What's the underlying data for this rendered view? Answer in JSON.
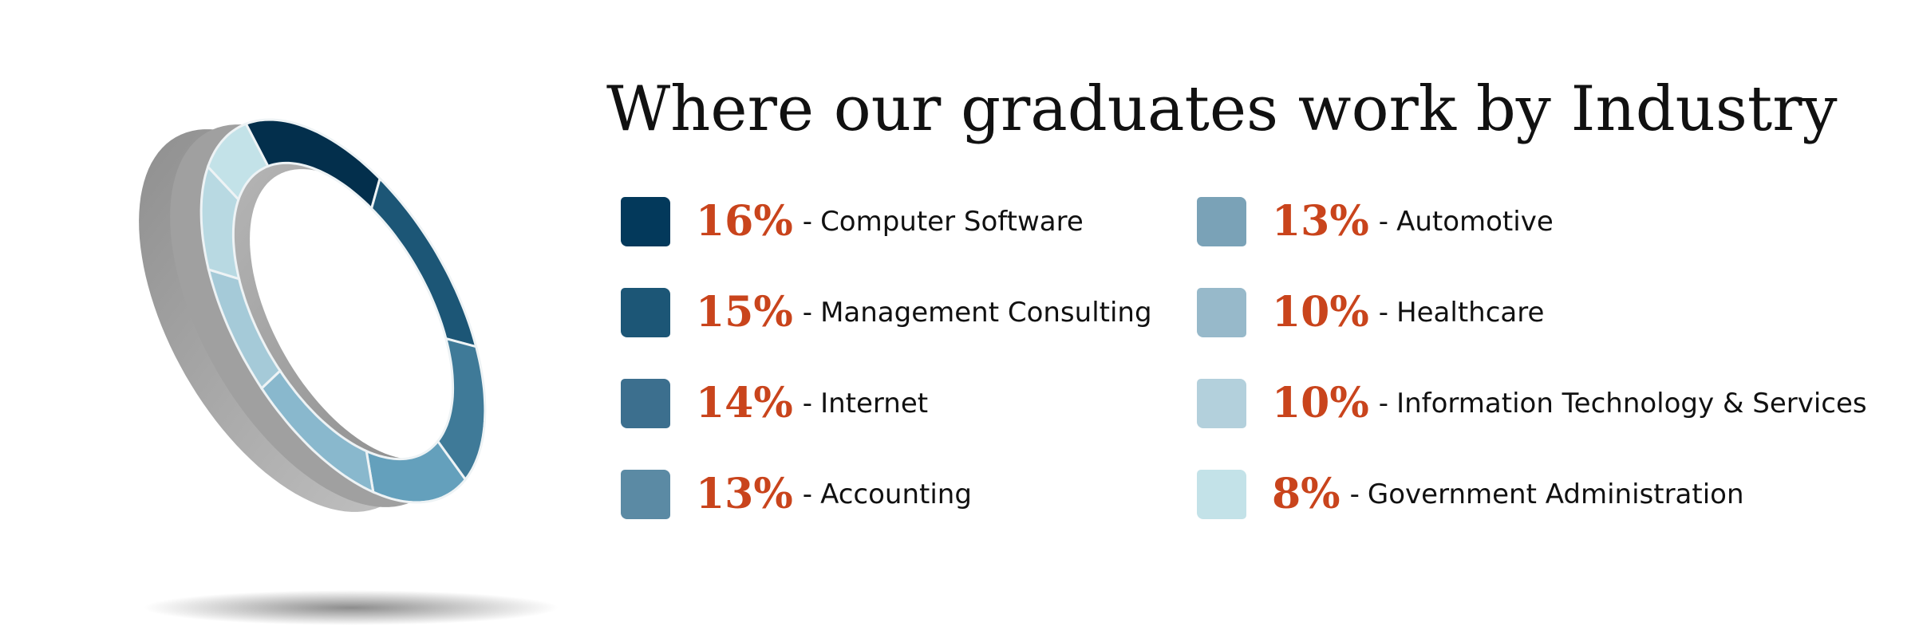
{
  "chart_data": {
    "type": "pie",
    "title": "Where our graduates work by Industry",
    "slices": [
      {
        "label": "Computer Software",
        "value": 16,
        "display": "16%",
        "color": "#03395b"
      },
      {
        "label": "Management Consulting",
        "value": 15,
        "display": "15%",
        "color": "#1c5676"
      },
      {
        "label": "Internet",
        "value": 14,
        "display": "14%",
        "color": "#3c6f8e"
      },
      {
        "label": "Accounting",
        "value": 13,
        "display": "13%",
        "color": "#5b8aa4"
      },
      {
        "label": "Automotive",
        "value": 13,
        "display": "13%",
        "color": "#7aa2b7"
      },
      {
        "label": "Healthcare",
        "value": 10,
        "display": "10%",
        "color": "#97b9ca"
      },
      {
        "label": "Information Technology & Services",
        "value": 10,
        "display": "10%",
        "color": "#b3d0dc"
      },
      {
        "label": "Government Administration",
        "value": 8,
        "display": "8%",
        "color": "#c3e2e8"
      }
    ],
    "ring_colors": [
      "#032f4c",
      "#1c5676",
      "#3f7a98",
      "#64a0bc",
      "#89b8cd",
      "#a5cad8",
      "#b8d9e2",
      "#c3e2e8"
    ],
    "ring_side_color": "#a0a0a0",
    "legend_placement": "right",
    "grid": false
  }
}
